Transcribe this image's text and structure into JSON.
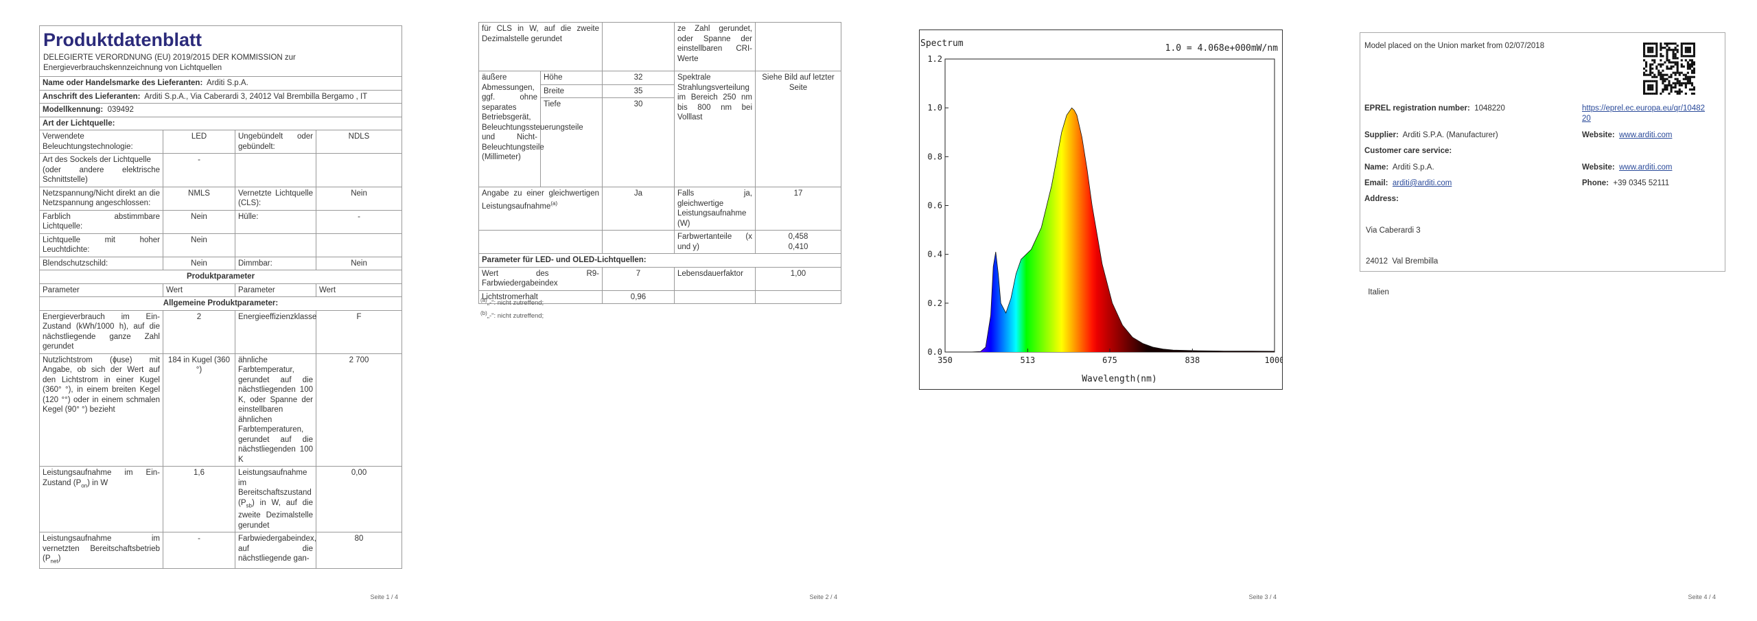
{
  "page1": {
    "title": "Produktdatenblatt",
    "subtitle": "DELEGIERTE VERORDNUNG (EU) 2019/2015 DER KOMMISSION zur Energieverbrauchskennzeichnung von Lichtquellen",
    "supplier_label": "Name oder Handelsmarke des Lieferanten:",
    "supplier_value": "Arditi S.p.A.",
    "address_label": "Anschrift des Lieferanten:",
    "address_value": "Arditi S.p.A., Via Caberardi 3, 24012 Val Brembilla Bergamo , IT",
    "model_label": "Modellkennung:",
    "model_value": "039492",
    "type_header": "Art der Lichtquelle:",
    "rows": [
      [
        "Verwendete Beleuchtungstechnologie:",
        "LED",
        "Ungebündelt oder gebündelt:",
        "NDLS"
      ],
      [
        "Art des Sockels der Lichtquelle\n(oder andere elektrische Schnittstelle)",
        "-",
        "",
        ""
      ],
      [
        "Netzspannung/Nicht direkt an die Netzspannung angeschlossen:",
        "NMLS",
        "Vernetzte Lichtquelle (CLS):",
        "Nein"
      ],
      [
        "Farblich abstimmbare Lichtquelle:",
        "Nein",
        "Hülle:",
        "-"
      ],
      [
        "Lichtquelle mit hoher Leuchtdichte:",
        "Nein",
        "",
        ""
      ],
      [
        "Blendschutzschild:",
        "Nein",
        "Dimmbar:",
        "Nein"
      ]
    ],
    "product_params": "Produktparameter",
    "param_headers": [
      "Parameter",
      "Wert",
      "Parameter",
      "Wert"
    ],
    "general_params": "Allgemeine Produktparameter:",
    "energy": [
      "Energieverbrauch im Ein-Zustand (kWh/1000 h), auf die nächstliegende ganze Zahl gerundet",
      "2",
      "Energieeffizienzklasse",
      "F"
    ],
    "flux_param": "Nutzlichtstrom (ɸuse) mit Angabe, ob sich der Wert auf den Lichtstrom in einer Kugel (360° °), in einem breiten Kegel (120 °°) oder in einem schmalen Kegel (90° °) bezieht",
    "flux_value": "184 in Kugel (360 °)",
    "cct_param": "ähnliche Farbtemperatur, gerundet auf die nächstliegenden 100 K, oder Spanne der einstellbaren ähnlichen Farbtemperaturen, gerundet auf die nächstliegenden 100 K",
    "cct_value": "2 700",
    "pon_param_a": "Leistungsaufnahme im Ein-Zustand (P",
    "pon_sub": "on",
    "pon_param_b": ") in W",
    "pon_value": "1,6",
    "psb_param_a": "Leistungsaufnahme im Bereitschaftszustand (P",
    "psb_sub": "sb",
    "psb_param_b": ") in W, auf die zweite Dezimalstelle gerundet",
    "psb_value": "0,00",
    "pnet_param_a": "Leistungsaufnahme im vernetzten Bereitschaftsbetrieb (P",
    "pnet_sub": "net",
    "pnet_param_b": ")",
    "pnet_value": "-",
    "cri_param": "Farbwiedergabeindex, auf die nächstliegende gan-",
    "cri_value": "80",
    "page_num": "Seite 1 / 4"
  },
  "page2": {
    "cont_left": "für CLS in W, auf die zweite Dezimalstelle gerundet",
    "cont_right": "ze Zahl gerundet, oder Spanne der einstellbaren CRI-Werte",
    "dims_label": "äußere Abmessungen, ggf. ohne separates Betriebsgerät, Beleuchtungssteuerungsteile und Nicht-Beleuchtungsteile (Millimeter)",
    "dims": [
      [
        "Höhe",
        "32"
      ],
      [
        "Breite",
        "35"
      ],
      [
        "Tiefe",
        "30"
      ]
    ],
    "spectral_label": "Spektrale Strahlungsverteilung im Bereich 250 nm bis 800 nm bei Volllast",
    "spectral_value": "Siehe Bild auf letzter Seite",
    "equiv_label_a": "Angabe zu einer gleichwertigen Leistungsaufnahme",
    "equiv_sup": "(a)",
    "equiv_value": "Ja",
    "equiv_right": "Falls ja, gleichwertige Leistungsaufnahme (W)",
    "equiv_right_value": "17",
    "chroma_label": "Farbwertanteile (x und y)",
    "chroma_value": "0,458\n0,410",
    "led_header": "Parameter für LED- und OLED-Lichtquellen:",
    "r9_label": "Wert des R9-Farbwiedergabeindex",
    "r9_value": "7",
    "life_label": "Lebensdauerfaktor",
    "life_value": "1,00",
    "maint_label": "Lichtstromerhalt",
    "maint_value": "0,96",
    "foot_a_sup": "(a)",
    "foot_a": "„-\": nicht zutreffend;",
    "foot_b_sup": "(b)",
    "foot_b": "„-\": nicht zutreffend;",
    "page_num": "Seite 2 / 4"
  },
  "page3": {
    "page_num": "Seite 3 / 4"
  },
  "chart_data": {
    "type": "area",
    "title": "Spectrum",
    "annotation": "1.0 = 4.068e+000mW/nm",
    "xlabel": "Wavelength(nm)",
    "ylabel": "",
    "xlim": [
      350,
      1000
    ],
    "ylim": [
      0,
      1.2
    ],
    "xticks": [
      "350",
      "513",
      "675",
      "838",
      "1000"
    ],
    "yticks": [
      "0.0",
      "0.2",
      "0.4",
      "0.6",
      "0.8",
      "1.0",
      "1.2"
    ],
    "grid": false,
    "x": [
      350,
      400,
      420,
      430,
      440,
      445,
      450,
      455,
      460,
      470,
      480,
      490,
      500,
      520,
      540,
      560,
      570,
      580,
      590,
      600,
      605,
      610,
      620,
      630,
      640,
      660,
      680,
      700,
      720,
      740,
      760,
      780,
      800,
      850,
      900,
      950,
      1000
    ],
    "series": [
      {
        "values": [
          0,
          0,
          0.002,
          0.02,
          0.15,
          0.35,
          0.41,
          0.32,
          0.2,
          0.16,
          0.22,
          0.32,
          0.38,
          0.42,
          0.51,
          0.68,
          0.79,
          0.9,
          0.97,
          1.0,
          0.99,
          0.97,
          0.88,
          0.75,
          0.6,
          0.36,
          0.2,
          0.11,
          0.06,
          0.035,
          0.02,
          0.012,
          0.008,
          0.005,
          0.004,
          0.004,
          0.003
        ]
      }
    ]
  },
  "page4": {
    "market": "Model placed on the Union market from 02/07/2018",
    "eprel_label": "EPREL registration number:",
    "eprel_value": "1048220",
    "eprel_link": "https://eprel.ec.europa.eu/qr/1048220",
    "supplier_label": "Supplier:",
    "supplier_value": "Arditi S.P.A. (Manufacturer)",
    "website_label": "Website:",
    "website_value": "www.arditi.com",
    "care_header": "Customer care service:",
    "name_label": "Name:",
    "name_value": "Arditi S.p.A.",
    "website2_label": "Website:",
    "website2_value": "www.arditi.com",
    "email_label": "Email:",
    "email_value": "arditi@arditi.com",
    "phone_label": "Phone:",
    "phone_value": "+39 0345 52111",
    "address_label": "Address:",
    "address_lines": [
      "Via Caberardi 3",
      "24012  Val Brembilla",
      " Italien"
    ],
    "page_num": "Seite 4 / 4"
  }
}
